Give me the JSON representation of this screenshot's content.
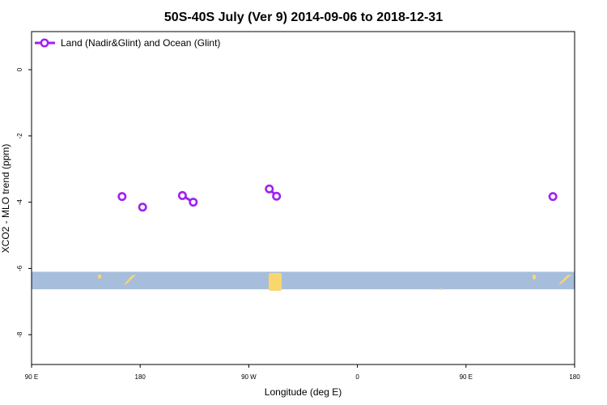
{
  "chart_data": {
    "type": "scatter",
    "title": "50S-40S July (Ver 9)   2014-09-06 to 2018-12-31",
    "xlabel": "Longitude (deg E)",
    "ylabel": "XCO2 - MLO trend (ppm)",
    "x_ticks": [
      {
        "value": 90,
        "label": "90 E"
      },
      {
        "value": 180,
        "label": "180"
      },
      {
        "value": 270,
        "label": "90 W"
      },
      {
        "value": 360,
        "label": "0"
      },
      {
        "value": 450,
        "label": "90 E"
      },
      {
        "value": 540,
        "label": "180"
      }
    ],
    "y_ticks": [
      {
        "value": 0,
        "label": "0"
      },
      {
        "value": -2,
        "label": "-2"
      },
      {
        "value": -4,
        "label": "-4"
      },
      {
        "value": -6,
        "label": "-6"
      },
      {
        "value": -8,
        "label": "-8"
      }
    ],
    "xlim": [
      90,
      540
    ],
    "ylim": [
      -8.9,
      1.15
    ],
    "grid": false,
    "legend_position": "top-left",
    "series": [
      {
        "name": "Land (Nadir&Glint) and Ocean (Glint)",
        "color": "#a020f0",
        "points": [
          {
            "x": 165,
            "y": -3.83
          },
          {
            "x": 182,
            "y": -4.15
          },
          {
            "x": 215,
            "y": -3.8
          },
          {
            "x": 224,
            "y": -4.0
          },
          {
            "x": 287,
            "y": -3.6
          },
          {
            "x": 293,
            "y": -3.82
          },
          {
            "x": 522,
            "y": -3.83
          }
        ]
      }
    ],
    "map_strip": {
      "lat_range": [
        -50,
        -40
      ],
      "ocean_color": "#a7bddc",
      "land_color": "#f9d76d"
    }
  }
}
